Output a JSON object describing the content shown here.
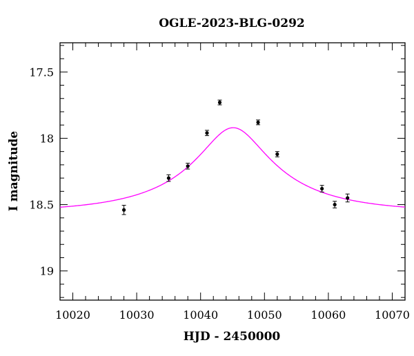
{
  "chart_data": {
    "type": "scatter",
    "title": "OGLE-2023-BLG-0292",
    "xlabel": "HJD - 2450000",
    "ylabel": "I magnitude",
    "xlim": [
      10018,
      10072
    ],
    "ylim": [
      19.22,
      17.28
    ],
    "y_inverted": true,
    "grid": false,
    "x_ticks": [
      10020,
      10030,
      10040,
      10050,
      10060,
      10070
    ],
    "y_ticks": [
      17.5,
      18,
      18.5,
      19
    ],
    "x_tick_labels": [
      "10020",
      "10030",
      "10040",
      "10050",
      "10060",
      "10070"
    ],
    "y_tick_labels": [
      "17.5",
      "18",
      "18.5",
      "19"
    ],
    "series": [
      {
        "kind": "points_with_errorbars",
        "color": "#000000",
        "points": [
          {
            "x": 10028.0,
            "y": 18.54,
            "err": 0.035
          },
          {
            "x": 10035.0,
            "y": 18.3,
            "err": 0.025
          },
          {
            "x": 10038.0,
            "y": 18.21,
            "err": 0.022
          },
          {
            "x": 10041.0,
            "y": 17.96,
            "err": 0.02
          },
          {
            "x": 10043.0,
            "y": 17.73,
            "err": 0.018
          },
          {
            "x": 10049.0,
            "y": 17.88,
            "err": 0.018
          },
          {
            "x": 10052.0,
            "y": 18.12,
            "err": 0.02
          },
          {
            "x": 10059.0,
            "y": 18.38,
            "err": 0.025
          },
          {
            "x": 10061.0,
            "y": 18.5,
            "err": 0.025
          },
          {
            "x": 10063.0,
            "y": 18.45,
            "err": 0.03
          }
        ]
      },
      {
        "kind": "model_curve",
        "color": "#ff00ff",
        "model": {
          "t0": 10045.1,
          "tE": 18.0,
          "u0": 0.28,
          "baseline": 18.56,
          "fs": 0.3
        }
      }
    ]
  }
}
